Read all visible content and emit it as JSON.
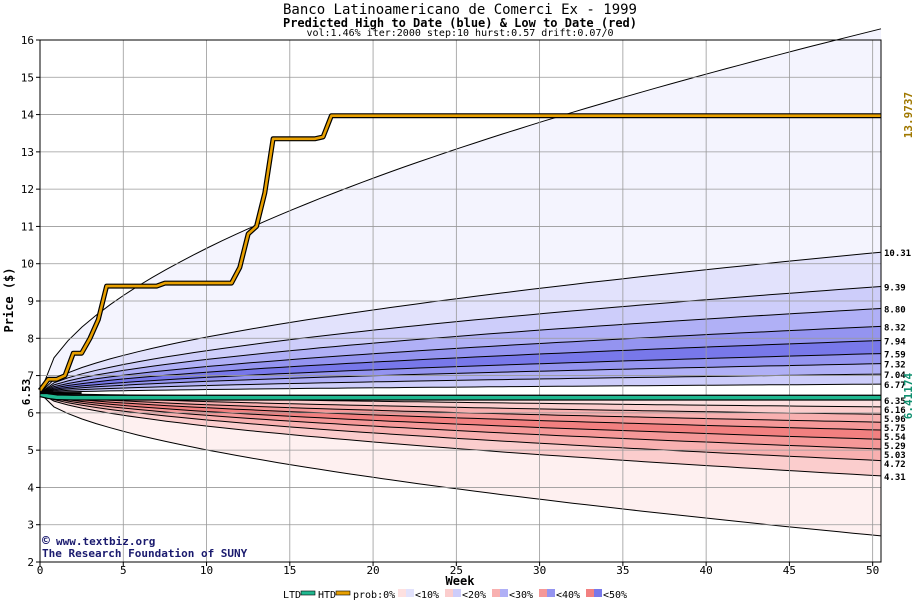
{
  "chart_data": {
    "type": "area",
    "title": "Banco Latinoamericano de Comerci Ex - 1999",
    "subtitle": "Predicted High to Date (blue) &  Low to Date (red)",
    "params": "vol:1.46% iter:2000 step:10 hurst:0.57 drift:0.07/0",
    "xlabel": "Week",
    "ylabel": "Price ($)",
    "xlim": [
      0,
      50.5
    ],
    "ylim": [
      2,
      16
    ],
    "x_ticks": [
      0,
      5,
      10,
      15,
      20,
      25,
      30,
      35,
      40,
      45,
      50
    ],
    "y_ticks": [
      2,
      3,
      4,
      5,
      6,
      7,
      8,
      9,
      10,
      11,
      12,
      13,
      14,
      15,
      16
    ],
    "grid": true,
    "start_price": 6.53,
    "start_price_label": "6.53",
    "htd_final_label": "13.9737",
    "ltd_final_label": "6.41174",
    "colors": {
      "htd": "#e8a000",
      "ltd": "#20b890",
      "high_bands": [
        "#f4f4fe",
        "#e2e2fc",
        "#cdcdfa",
        "#b0b0f6",
        "#9494f0",
        "#7878ea"
      ],
      "low_bands": [
        "#fef0f0",
        "#fde0e0",
        "#fbcdcd",
        "#f8b0b0",
        "#f59898",
        "#f28080"
      ],
      "accent_text": "#a07800",
      "ltd_text": "#109070"
    },
    "high_quantiles": [
      {
        "label": "10.31",
        "final": 10.31
      },
      {
        "label": "9.39",
        "final": 9.39
      },
      {
        "label": "8.80",
        "final": 8.8
      },
      {
        "label": "8.32",
        "final": 8.32
      },
      {
        "label": "7.94",
        "final": 7.94
      },
      {
        "label": "7.59",
        "final": 7.59
      },
      {
        "label": "7.32",
        "final": 7.32
      },
      {
        "label": "7.04",
        "final": 7.04
      },
      {
        "label": "6.77",
        "final": 6.77
      }
    ],
    "low_quantiles": [
      {
        "label": "6.35",
        "final": 6.35
      },
      {
        "label": "6.16",
        "final": 6.16
      },
      {
        "label": "5.96",
        "final": 5.96
      },
      {
        "label": "5.75",
        "final": 5.75
      },
      {
        "label": "5.54",
        "final": 5.54
      },
      {
        "label": "5.29",
        "final": 5.29
      },
      {
        "label": "5.03",
        "final": 5.03
      },
      {
        "label": "4.72",
        "final": 4.72
      },
      {
        "label": "4.31",
        "final": 4.31
      }
    ],
    "outer_high_final": 16.3,
    "outer_low_final": 2.7,
    "htd_series": {
      "x": [
        0,
        0.5,
        1,
        1.5,
        2,
        2.5,
        3,
        3.5,
        4,
        4.5,
        5,
        5.5,
        6,
        6.5,
        7,
        7.5,
        8,
        8.5,
        9,
        9.5,
        10,
        10.5,
        11,
        11.5,
        12,
        12.5,
        13,
        13.5,
        14,
        14.5,
        15,
        15.5,
        16,
        16.5,
        17,
        17.5,
        18,
        20,
        25,
        30,
        35,
        40,
        45,
        50.5
      ],
      "values": [
        6.6,
        6.9,
        6.9,
        7.0,
        7.6,
        7.6,
        8.0,
        8.5,
        9.4,
        9.4,
        9.4,
        9.4,
        9.4,
        9.4,
        9.4,
        9.48,
        9.48,
        9.48,
        9.48,
        9.48,
        9.48,
        9.48,
        9.48,
        9.48,
        9.9,
        10.8,
        11.0,
        11.9,
        13.35,
        13.35,
        13.35,
        13.35,
        13.35,
        13.35,
        13.4,
        13.97,
        13.97,
        13.97,
        13.97,
        13.97,
        13.97,
        13.97,
        13.97,
        13.97
      ]
    },
    "ltd_series": {
      "x": [
        0,
        0.5,
        1,
        2,
        5,
        10,
        20,
        30,
        40,
        50.5
      ],
      "values": [
        6.5,
        6.45,
        6.42,
        6.41,
        6.41,
        6.41,
        6.41,
        6.41,
        6.41,
        6.41
      ]
    },
    "watermark": {
      "line1": "www.textbiz.org",
      "line2": "The Research Foundation of SUNY",
      "copyright_symbol": "©"
    },
    "legend": {
      "position": "bottom",
      "ltd": "LTD",
      "htd": "HTD",
      "prob_label": "prob:0%",
      "items": [
        "<10%",
        "<20%",
        "<30%",
        "<40%",
        "<50%"
      ]
    }
  }
}
